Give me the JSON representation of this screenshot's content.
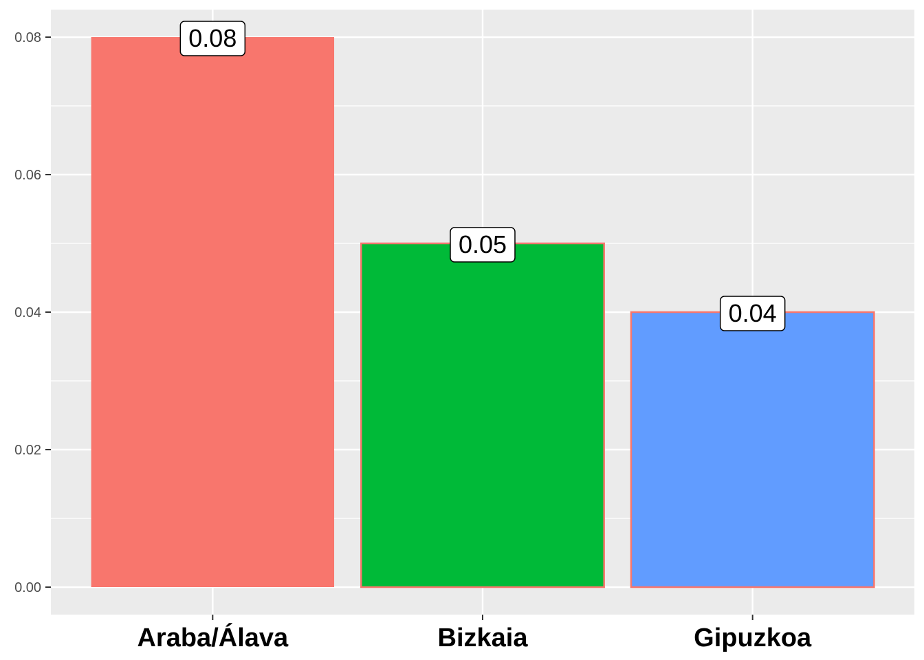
{
  "chart_data": {
    "type": "bar",
    "categories": [
      "Araba/Álava",
      "Bizkaia",
      "Gipuzkoa"
    ],
    "values": [
      0.08,
      0.05,
      0.04
    ],
    "data_labels": [
      "0.08",
      "0.05",
      "0.04"
    ],
    "colors": [
      "#F8766D",
      "#00BA38",
      "#619CFF"
    ],
    "bar_outline_color": "#F8766D",
    "ylim": [
      0,
      0.08
    ],
    "yticks": [
      0.0,
      0.02,
      0.04,
      0.06,
      0.08
    ],
    "ytick_labels": [
      "0.00",
      "0.02",
      "0.04",
      "0.06",
      "0.08"
    ],
    "grid": true,
    "panel_background": "#EBEBEB",
    "title": "",
    "xlabel": "",
    "ylabel": ""
  }
}
